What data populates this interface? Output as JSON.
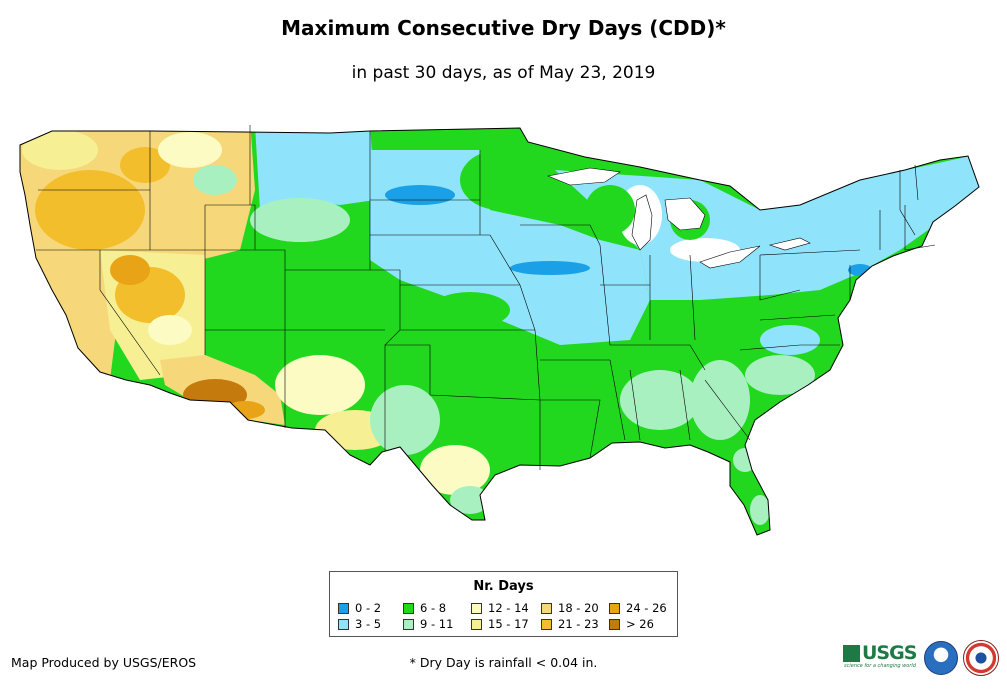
{
  "map": {
    "title": "Maximum Consecutive Dry Days (CDD)*",
    "subtitle": "in past 30 days, as of May 23, 2019",
    "region": "Contiguous United States",
    "legend": {
      "title": "Nr. Days",
      "items": [
        {
          "label": "0 - 2",
          "color": "#1aa0e6"
        },
        {
          "label": "3 - 5",
          "color": "#8fe4fb"
        },
        {
          "label": "6 - 8",
          "color": "#22d81f"
        },
        {
          "label": "9 - 11",
          "color": "#a9f0c1"
        },
        {
          "label": "12 - 14",
          "color": "#fbfbc3"
        },
        {
          "label": "15 - 17",
          "color": "#f7ef93"
        },
        {
          "label": "18 - 20",
          "color": "#f6d87a"
        },
        {
          "label": "21 - 23",
          "color": "#f3be2b"
        },
        {
          "label": "24 - 26",
          "color": "#e8a316"
        },
        {
          "label": "> 26",
          "color": "#c57a0e"
        }
      ]
    },
    "credit": "Map Produced by USGS/EROS",
    "footnote": "* Dry Day is rainfall < 0.04 in.",
    "logos": {
      "usgs_text": "USGS",
      "usgs_tagline": "science for a changing world",
      "noaa": "noaa-logo",
      "nws": "nws-logo"
    }
  }
}
